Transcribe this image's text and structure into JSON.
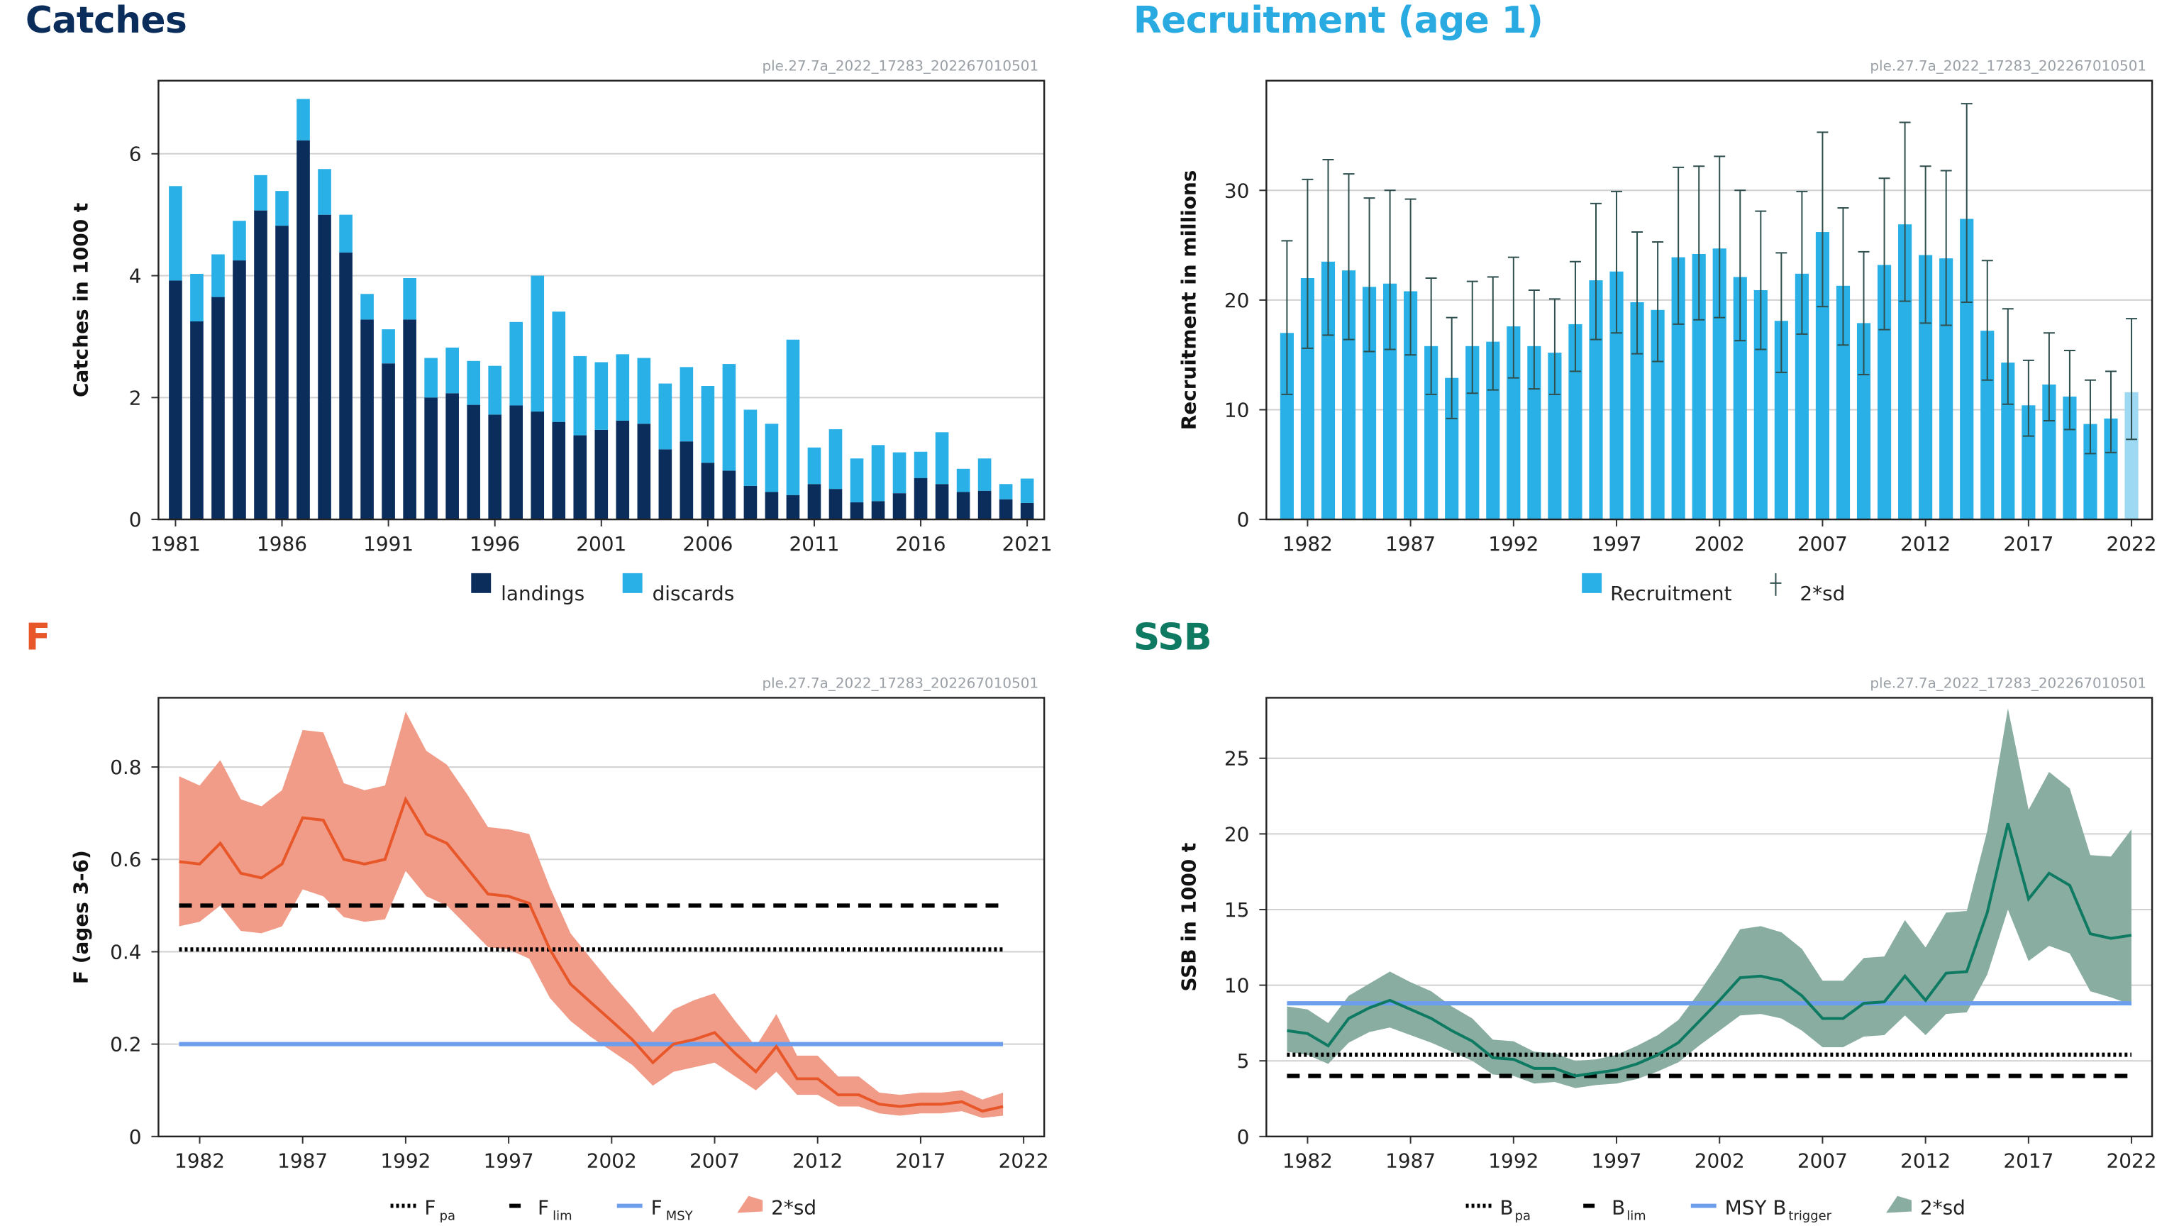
{
  "colors": {
    "landings": "#0b2d5c",
    "discards": "#29b0e6",
    "recruit": "#29b0e6",
    "recruit_last": "#9ed9f3",
    "errbar": "#2f4f4f",
    "f_line": "#e8572a",
    "f_band": "#f19c88",
    "ssb_line": "#0e7a62",
    "ssb_band": "#8aada2",
    "msy": "#6d9eeb",
    "grid": "#d0d0d0",
    "catches_title": "#0b2d5c",
    "recruit_title": "#29abe2",
    "f_title": "#e8572a",
    "ssb_title": "#0e7a62"
  },
  "chart_data": [
    {
      "id": "catches",
      "type": "bar",
      "title": "Catches",
      "source": "ple.27.7a_2022_17283_202267010501",
      "ylabel": "Catches in 1000 t",
      "ylim": [
        0,
        7.2
      ],
      "xlim": [
        1980.2,
        2021.8
      ],
      "yticks": [
        0,
        2,
        4,
        6
      ],
      "xticks": [
        1981,
        1986,
        1991,
        1996,
        2001,
        2006,
        2011,
        2016,
        2021
      ],
      "legend": [
        "landings",
        "discards"
      ],
      "years": [
        1981,
        1982,
        1983,
        1984,
        1985,
        1986,
        1987,
        1988,
        1989,
        1990,
        1991,
        1992,
        1993,
        1994,
        1995,
        1996,
        1997,
        1998,
        1999,
        2000,
        2001,
        2002,
        2003,
        2004,
        2005,
        2006,
        2007,
        2008,
        2009,
        2010,
        2011,
        2012,
        2013,
        2014,
        2015,
        2016,
        2017,
        2018,
        2019,
        2020,
        2021
      ],
      "landings": [
        3.92,
        3.25,
        3.65,
        4.25,
        5.07,
        4.82,
        6.22,
        5.0,
        4.38,
        3.28,
        2.56,
        3.28,
        2.0,
        2.07,
        1.88,
        1.72,
        1.87,
        1.77,
        1.6,
        1.38,
        1.47,
        1.62,
        1.57,
        1.15,
        1.28,
        0.93,
        0.8,
        0.55,
        0.45,
        0.4,
        0.58,
        0.5,
        0.28,
        0.3,
        0.43,
        0.68,
        0.58,
        0.45,
        0.47,
        0.33,
        0.27
      ],
      "discards": [
        1.55,
        0.78,
        0.7,
        0.65,
        0.58,
        0.57,
        0.68,
        0.75,
        0.62,
        0.42,
        0.56,
        0.68,
        0.65,
        0.75,
        0.72,
        0.8,
        1.37,
        2.23,
        1.81,
        1.3,
        1.11,
        1.09,
        1.08,
        1.08,
        1.22,
        1.26,
        1.75,
        1.25,
        1.12,
        2.55,
        0.6,
        0.98,
        0.72,
        0.92,
        0.67,
        0.43,
        0.85,
        0.38,
        0.53,
        0.25,
        0.4
      ]
    },
    {
      "id": "recruitment",
      "type": "bar",
      "title": "Recruitment (age 1)",
      "source": "ple.27.7a_2022_17283_202267010501",
      "ylabel": "Recruitment in millions",
      "ylim": [
        0,
        40
      ],
      "xlim": [
        1980.0,
        2023.0
      ],
      "yticks": [
        0,
        10,
        20,
        30
      ],
      "xticks": [
        1982,
        1987,
        1992,
        1997,
        2002,
        2007,
        2012,
        2017,
        2022
      ],
      "legend": [
        "Recruitment",
        "2*sd"
      ],
      "years": [
        1981,
        1982,
        1983,
        1984,
        1985,
        1986,
        1987,
        1988,
        1989,
        1990,
        1991,
        1992,
        1993,
        1994,
        1995,
        1996,
        1997,
        1998,
        1999,
        2000,
        2001,
        2002,
        2003,
        2004,
        2005,
        2006,
        2007,
        2008,
        2009,
        2010,
        2011,
        2012,
        2013,
        2014,
        2015,
        2016,
        2017,
        2018,
        2019,
        2020,
        2021,
        2022
      ],
      "values": [
        17,
        22,
        23.5,
        22.7,
        21.2,
        21.5,
        20.8,
        15.8,
        12.9,
        15.8,
        16.2,
        17.6,
        15.8,
        15.2,
        17.8,
        21.8,
        22.6,
        19.8,
        19.1,
        23.9,
        24.2,
        24.7,
        22.1,
        20.9,
        18.1,
        22.4,
        26.2,
        21.3,
        17.9,
        23.2,
        26.9,
        24.1,
        23.8,
        27.4,
        17.2,
        14.3,
        10.4,
        12.3,
        11.2,
        8.7,
        9.2,
        11.6
      ],
      "upper": [
        25.4,
        31,
        32.8,
        31.5,
        29.3,
        30,
        29.2,
        22,
        18.4,
        21.7,
        22.1,
        23.9,
        20.9,
        20.1,
        23.5,
        28.8,
        29.9,
        26.2,
        25.3,
        32.1,
        32.2,
        33.1,
        30,
        28.1,
        24.3,
        29.9,
        35.3,
        28.4,
        24.4,
        31.1,
        36.2,
        32.2,
        31.8,
        37.9,
        23.6,
        19.2,
        14.5,
        17,
        15.4,
        12.7,
        13.5,
        18.3
      ],
      "lower": [
        11.4,
        15.6,
        16.8,
        16.4,
        15.3,
        15.5,
        15,
        11.4,
        9.2,
        11.5,
        11.8,
        12.9,
        11.9,
        11.4,
        13.5,
        16.4,
        17,
        15.1,
        14.4,
        17.8,
        18.2,
        18.4,
        16.3,
        15.5,
        13.4,
        16.9,
        19.4,
        15.9,
        13.2,
        17.3,
        19.9,
        17.9,
        17.7,
        19.8,
        12.7,
        10.5,
        7.6,
        9,
        8.2,
        6,
        6.1,
        7.3
      ]
    },
    {
      "id": "F",
      "type": "line",
      "title": "F",
      "source": "ple.27.7a_2022_17283_202267010501",
      "ylabel": "F (ages 3-6)",
      "ylim": [
        0,
        0.95
      ],
      "xlim": [
        1980.0,
        2023.0
      ],
      "yticks": [
        0,
        0.2,
        0.4,
        0.6,
        0.8
      ],
      "ytick_labels": [
        "0",
        "0.2",
        "0.4",
        "0.6",
        "0.8"
      ],
      "xticks": [
        1982,
        1987,
        1992,
        1997,
        2002,
        2007,
        2012,
        2017,
        2022
      ],
      "legend": [
        "Fpa",
        "Flim",
        "FMSY",
        "2*sd"
      ],
      "x": [
        1981,
        1982,
        1983,
        1984,
        1985,
        1986,
        1987,
        1988,
        1989,
        1990,
        1991,
        1992,
        1993,
        1994,
        1995,
        1996,
        1997,
        1998,
        1999,
        2000,
        2001,
        2002,
        2003,
        2004,
        2005,
        2006,
        2007,
        2008,
        2009,
        2010,
        2011,
        2012,
        2013,
        2014,
        2015,
        2016,
        2017,
        2018,
        2019,
        2020,
        2021
      ],
      "y": [
        0.595,
        0.59,
        0.635,
        0.57,
        0.56,
        0.59,
        0.69,
        0.685,
        0.6,
        0.59,
        0.6,
        0.73,
        0.655,
        0.635,
        0.58,
        0.525,
        0.52,
        0.505,
        0.405,
        0.33,
        0.29,
        0.25,
        0.21,
        0.16,
        0.2,
        0.21,
        0.225,
        0.18,
        0.14,
        0.195,
        0.125,
        0.125,
        0.09,
        0.09,
        0.07,
        0.065,
        0.07,
        0.07,
        0.075,
        0.055,
        0.065
      ],
      "upper": [
        0.78,
        0.76,
        0.815,
        0.73,
        0.715,
        0.75,
        0.88,
        0.875,
        0.765,
        0.75,
        0.76,
        0.92,
        0.835,
        0.805,
        0.74,
        0.67,
        0.665,
        0.655,
        0.54,
        0.44,
        0.385,
        0.33,
        0.28,
        0.225,
        0.275,
        0.295,
        0.31,
        0.25,
        0.195,
        0.265,
        0.175,
        0.175,
        0.13,
        0.13,
        0.095,
        0.09,
        0.095,
        0.095,
        0.1,
        0.08,
        0.095
      ],
      "lower": [
        0.455,
        0.465,
        0.5,
        0.445,
        0.44,
        0.455,
        0.535,
        0.52,
        0.475,
        0.465,
        0.47,
        0.575,
        0.52,
        0.5,
        0.455,
        0.41,
        0.405,
        0.385,
        0.3,
        0.25,
        0.215,
        0.185,
        0.155,
        0.11,
        0.14,
        0.15,
        0.16,
        0.13,
        0.1,
        0.14,
        0.09,
        0.09,
        0.065,
        0.065,
        0.05,
        0.045,
        0.05,
        0.05,
        0.055,
        0.04,
        0.045
      ],
      "refs": [
        {
          "label": "Fpa",
          "base": "F",
          "sub": "pa",
          "value": 0.405,
          "style": "dotted"
        },
        {
          "label": "Flim",
          "base": "F",
          "sub": "lim",
          "value": 0.5,
          "style": "dashed"
        },
        {
          "label": "FMSY",
          "base": "F",
          "sub": "MSY",
          "value": 0.2,
          "style": "solid"
        }
      ]
    },
    {
      "id": "SSB",
      "type": "line",
      "title": "SSB",
      "source": "ple.27.7a_2022_17283_202267010501",
      "ylabel": "SSB in 1000 t",
      "ylim": [
        0,
        29
      ],
      "xlim": [
        1980.0,
        2023.0
      ],
      "yticks": [
        0,
        5,
        10,
        15,
        20,
        25
      ],
      "xticks": [
        1982,
        1987,
        1992,
        1997,
        2002,
        2007,
        2012,
        2017,
        2022
      ],
      "legend": [
        "Bpa",
        "Blim",
        "MSY Btrigger",
        "2*sd"
      ],
      "x": [
        1981,
        1982,
        1983,
        1984,
        1985,
        1986,
        1987,
        1988,
        1989,
        1990,
        1991,
        1992,
        1993,
        1994,
        1995,
        1996,
        1997,
        1998,
        1999,
        2000,
        2001,
        2002,
        2003,
        2004,
        2005,
        2006,
        2007,
        2008,
        2009,
        2010,
        2011,
        2012,
        2013,
        2014,
        2015,
        2016,
        2017,
        2018,
        2019,
        2020,
        2021,
        2022
      ],
      "y": [
        7.0,
        6.8,
        6.0,
        7.8,
        8.5,
        9.0,
        8.4,
        7.8,
        7.0,
        6.3,
        5.2,
        5.1,
        4.5,
        4.5,
        4.0,
        4.2,
        4.4,
        4.8,
        5.4,
        6.2,
        7.6,
        9.0,
        10.5,
        10.6,
        10.3,
        9.3,
        7.8,
        7.8,
        8.8,
        8.9,
        10.6,
        9.0,
        10.8,
        10.9,
        14.8,
        20.7,
        15.7,
        17.4,
        16.6,
        13.4,
        13.1,
        13.3
      ],
      "upper": [
        8.6,
        8.4,
        7.5,
        9.3,
        10.1,
        10.9,
        10.2,
        9.6,
        8.6,
        7.8,
        6.4,
        6.3,
        5.6,
        5.5,
        5.0,
        5.1,
        5.4,
        6.0,
        6.7,
        7.7,
        9.5,
        11.5,
        13.7,
        13.9,
        13.5,
        12.4,
        10.3,
        10.3,
        11.8,
        11.9,
        14.3,
        12.5,
        14.8,
        14.9,
        20.2,
        28.3,
        21.6,
        24.1,
        23.0,
        18.6,
        18.5,
        20.3
      ],
      "lower": [
        5.6,
        5.4,
        4.8,
        6.2,
        6.9,
        7.2,
        6.7,
        6.2,
        5.6,
        5.0,
        4.1,
        4.0,
        3.5,
        3.6,
        3.2,
        3.4,
        3.5,
        3.8,
        4.3,
        4.9,
        6.0,
        7.0,
        8.0,
        8.1,
        7.8,
        7.0,
        5.9,
        5.9,
        6.6,
        6.7,
        8.0,
        6.7,
        8.1,
        8.2,
        10.7,
        15.0,
        11.6,
        12.6,
        12.1,
        9.6,
        9.2,
        8.7
      ],
      "refs": [
        {
          "label": "Bpa",
          "base": "B",
          "sub": "pa",
          "value": 5.4,
          "style": "dotted"
        },
        {
          "label": "Blim",
          "base": "B",
          "sub": "lim",
          "value": 4.0,
          "style": "dashed"
        },
        {
          "label": "MSY Btrigger",
          "base": "MSY B",
          "sub": "trigger",
          "value": 8.8,
          "style": "solid"
        }
      ]
    }
  ]
}
